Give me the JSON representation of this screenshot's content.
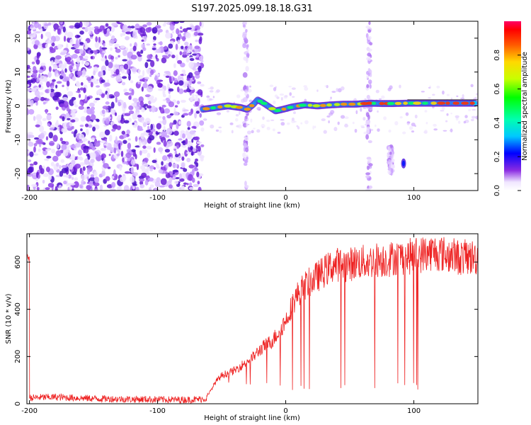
{
  "figure": {
    "title": "S197.2025.099.18.18.G31"
  },
  "chart_data": [
    {
      "type": "heatmap",
      "title": "S197.2025.099.18.18.G31",
      "xlabel": "Height of straight line (km)",
      "ylabel": "Frequency (Hz)",
      "xlim": [
        -202,
        150
      ],
      "ylim": [
        -25,
        25
      ],
      "xticks": [
        -200,
        -100,
        0,
        100
      ],
      "yticks": [
        -20,
        -10,
        0,
        10,
        20
      ],
      "colorbar": {
        "label": "Normalized spectral amplitude",
        "range": [
          0,
          1
        ],
        "ticks": [
          0.0,
          0.2,
          0.4,
          0.6,
          0.8
        ],
        "tick_labels": [
          "0.0",
          "0.2",
          "0.4",
          "0.6",
          "0.8"
        ]
      },
      "carrier_track": [
        {
          "x": -65,
          "y": -1.0
        },
        {
          "x": -55,
          "y": -0.5
        },
        {
          "x": -45,
          "y": 0.0
        },
        {
          "x": -35,
          "y": -0.5
        },
        {
          "x": -30,
          "y": -1.0
        },
        {
          "x": -25,
          "y": 0.5
        },
        {
          "x": -22,
          "y": 1.8
        },
        {
          "x": -18,
          "y": 1.0
        },
        {
          "x": -12,
          "y": -0.5
        },
        {
          "x": -8,
          "y": -1.5
        },
        {
          "x": -2,
          "y": -1.0
        },
        {
          "x": 5,
          "y": -0.3
        },
        {
          "x": 15,
          "y": 0.3
        },
        {
          "x": 25,
          "y": 0.0
        },
        {
          "x": 35,
          "y": 0.3
        },
        {
          "x": 45,
          "y": 0.5
        },
        {
          "x": 55,
          "y": 0.5
        },
        {
          "x": 65,
          "y": 0.8
        },
        {
          "x": 75,
          "y": 0.7
        },
        {
          "x": 85,
          "y": 0.7
        },
        {
          "x": 95,
          "y": 0.8
        },
        {
          "x": 110,
          "y": 0.8
        },
        {
          "x": 130,
          "y": 0.8
        },
        {
          "x": 148,
          "y": 0.8
        }
      ]
    },
    {
      "type": "line",
      "xlabel": "Height of straight line (km)",
      "ylabel": "SNR (10 * v/v)",
      "xlim": [
        -202,
        150
      ],
      "ylim": [
        0,
        720
      ],
      "xticks": [
        -200,
        -100,
        0,
        100
      ],
      "yticks": [
        0,
        200,
        400,
        600
      ],
      "color": "#ee2222",
      "series": [
        {
          "x": [
            -200,
            -190,
            -180,
            -170,
            -160,
            -150,
            -140,
            -130,
            -120,
            -110,
            -100,
            -90,
            -80,
            -70,
            -62,
            -55,
            -50,
            -45,
            -40,
            -35,
            -30,
            -25,
            -20,
            -15,
            -10,
            -5,
            0,
            5,
            10,
            15,
            20,
            25,
            30,
            35,
            40,
            45,
            50,
            55,
            60,
            65,
            70,
            75,
            80,
            85,
            90,
            95,
            100,
            105,
            110,
            115,
            120,
            125,
            130,
            135,
            140,
            145,
            150
          ],
          "values": [
            25,
            27,
            28,
            26,
            24,
            22,
            21,
            20,
            19,
            19,
            18,
            17,
            17,
            18,
            22,
            90,
            120,
            130,
            140,
            160,
            180,
            200,
            230,
            250,
            270,
            310,
            350,
            420,
            470,
            500,
            520,
            540,
            560,
            580,
            590,
            590,
            590,
            600,
            600,
            600,
            610,
            610,
            610,
            620,
            620,
            620,
            630,
            630,
            640,
            640,
            640,
            630,
            630,
            620,
            620,
            620,
            620
          ]
        }
      ]
    }
  ]
}
